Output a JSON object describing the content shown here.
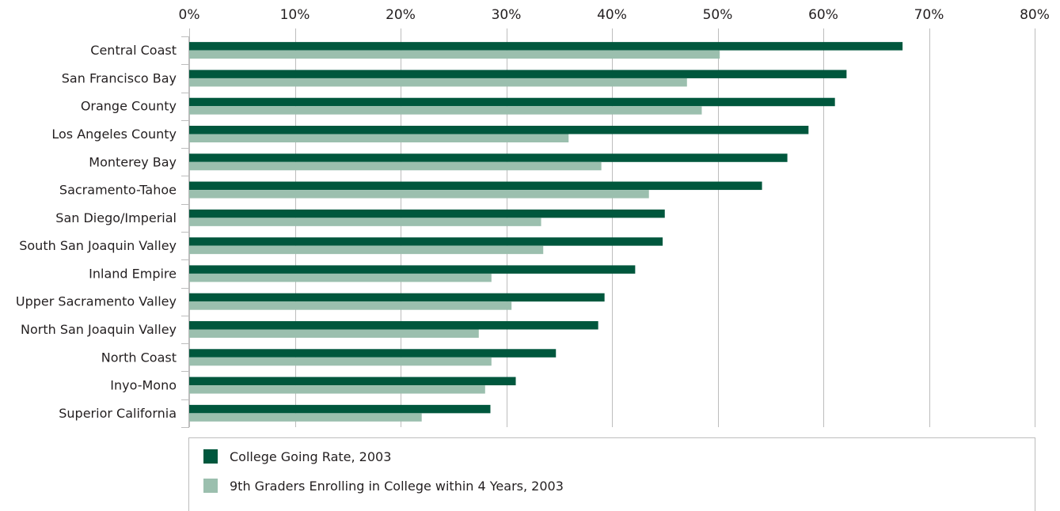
{
  "chart_data": {
    "type": "bar",
    "orientation": "horizontal",
    "categories": [
      "Central Coast",
      "San Francisco Bay",
      "Orange County",
      "Los Angeles County",
      "Monterey Bay",
      "Sacramento-Tahoe",
      "San Diego/Imperial",
      "South San Joaquin Valley",
      "Inland Empire",
      "Upper Sacramento Valley",
      "North San Joaquin Valley",
      "North Coast",
      "Inyo-Mono",
      "Superior California"
    ],
    "series": [
      {
        "name": "College Going Rate, 2003",
        "color": "#00573d",
        "values": [
          67.5,
          62.2,
          61.1,
          58.6,
          56.6,
          54.2,
          45.0,
          44.8,
          42.2,
          39.3,
          38.7,
          34.7,
          30.9,
          28.5
        ]
      },
      {
        "name": "9th Graders Enrolling in College within 4 Years, 2003",
        "color": "#9bbfae",
        "values": [
          50.2,
          47.1,
          48.5,
          35.9,
          39.0,
          43.5,
          33.3,
          33.5,
          28.6,
          30.5,
          27.4,
          28.6,
          28.0,
          22.0
        ]
      }
    ],
    "xlim": [
      0,
      80
    ],
    "xticks": [
      "0%",
      "10%",
      "20%",
      "30%",
      "40%",
      "50%",
      "60%",
      "70%",
      "80%"
    ],
    "grid": true,
    "legend_position": "bottom"
  }
}
